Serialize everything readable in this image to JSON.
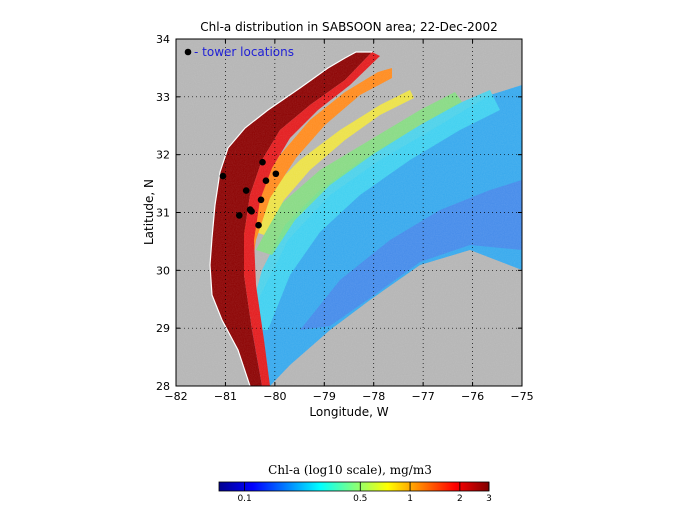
{
  "chart_data": {
    "type": "heatmap",
    "title": "Chl-a distribution in SABSOON area; 22-Dec-2002",
    "xlabel": "Longitude, W",
    "ylabel": "Latitude, N",
    "xlim": [
      -82,
      -75
    ],
    "ylim": [
      28,
      34
    ],
    "xticks": [
      -82,
      -81,
      -80,
      -79,
      -78,
      -77,
      -76,
      -75
    ],
    "xtick_labels": [
      "−82",
      "−81",
      "−80",
      "−79",
      "−78",
      "−77",
      "−76",
      "−75"
    ],
    "yticks": [
      28,
      29,
      30,
      31,
      32,
      33,
      34
    ],
    "ytick_labels": [
      "28",
      "29",
      "30",
      "31",
      "32",
      "33",
      "34"
    ],
    "grid": true,
    "legend_text": "- tower locations",
    "legend_placement": "top-left",
    "towers": {
      "x": [
        -81.05,
        -80.72,
        -80.5,
        -80.33,
        -80.25,
        -80.18,
        -80.58,
        -80.47,
        -80.28,
        -79.98
      ],
      "y": [
        31.63,
        30.95,
        31.05,
        30.78,
        31.87,
        31.55,
        31.38,
        31.02,
        31.22,
        31.67
      ]
    },
    "colorbar": {
      "title": "Chl-a (log10 scale), mg/m3",
      "tick_values": [
        0.1,
        0.5,
        1,
        2,
        3
      ],
      "tick_labels": [
        "0.1",
        "0.5",
        "1",
        "2",
        "3"
      ],
      "range": [
        0.07,
        3
      ]
    },
    "colors": {
      "land": "#b4b4b4",
      "coast_high": "#8b0000",
      "tower_marker": "#000000"
    }
  }
}
